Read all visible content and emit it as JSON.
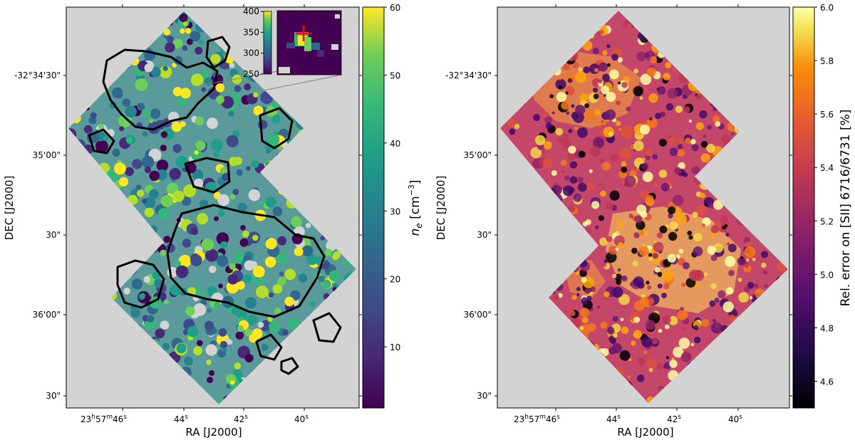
{
  "chart_data": [
    {
      "type": "heatmap",
      "title": "",
      "xlabel": "RA [J2000]",
      "ylabel": "DEC [J2000]",
      "x_ticks": [
        {
          "main": "23",
          "h": "h",
          "mid": "57",
          "m": "m",
          "tail": "46",
          "s": "s"
        },
        {
          "tail": "44",
          "s": "s"
        },
        {
          "tail": "42",
          "s": "s"
        },
        {
          "tail": "40",
          "s": "s"
        }
      ],
      "y_ticks": [
        "-32°34'30\"",
        "35'00\"",
        "30\"",
        "36'00\"",
        "30\""
      ],
      "background": "#d3d3d3",
      "grid": false,
      "overlay": "black contours",
      "colorbar": {
        "label_base": "n",
        "label_sub": "e",
        "label_unit_open": " [cm",
        "label_exp": "−3",
        "label_close": "]",
        "colormap": "viridis",
        "range": [
          1,
          60
        ],
        "ticks": [
          10,
          20,
          30,
          40,
          50,
          60
        ]
      },
      "inset": {
        "colormap": "viridis",
        "range": [
          250,
          400
        ],
        "ticks": [
          250,
          300,
          350,
          400
        ],
        "marker": "red cross"
      }
    },
    {
      "type": "heatmap",
      "title": "",
      "xlabel": "RA [J2000]",
      "ylabel": "DEC [J2000]",
      "x_ticks": [
        {
          "main": "23",
          "h": "h",
          "mid": "57",
          "m": "m",
          "tail": "46",
          "s": "s"
        },
        {
          "tail": "44",
          "s": "s"
        },
        {
          "tail": "42",
          "s": "s"
        },
        {
          "tail": "40",
          "s": "s"
        }
      ],
      "y_ticks": [
        "-32°34'30\"",
        "35'00\"",
        "30\"",
        "36'00\"",
        "30\""
      ],
      "background": "#d3d3d3",
      "grid": false,
      "colorbar": {
        "label": "Rel. error on [SII] 6716/6731 [%]",
        "colormap": "inferno",
        "range": [
          4.5,
          6.0
        ],
        "ticks": [
          4.6,
          4.8,
          5.0,
          5.2,
          5.4,
          5.6,
          5.8,
          6.0
        ]
      }
    }
  ],
  "colors": {
    "panel_background": "#d3d3d3",
    "contour": "#000000",
    "marker": "#ff0000",
    "inset_connector": "#808080"
  }
}
